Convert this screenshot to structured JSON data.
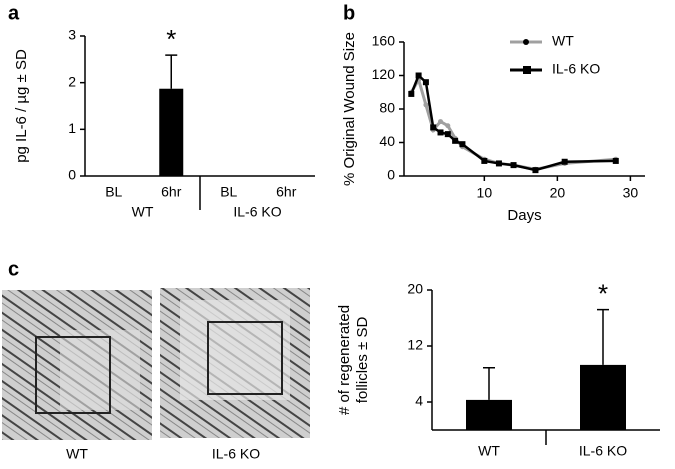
{
  "chart_data": [
    {
      "type": "bar",
      "panel": "a",
      "y_label": "pg IL-6 / µg ± SD",
      "categories": [
        "BL",
        "6hr",
        "BL",
        "6hr"
      ],
      "groups": [
        "WT",
        "IL-6 KO"
      ],
      "values": [
        0,
        1.87,
        0,
        0
      ],
      "errors": [
        null,
        0.72,
        null,
        null
      ],
      "color": "#000000",
      "ylim": [
        0,
        3
      ],
      "yticks": [
        0,
        1,
        2,
        3
      ],
      "annotations": [
        {
          "index": 1,
          "text": "*"
        }
      ]
    },
    {
      "type": "line",
      "panel": "b",
      "x_label": "Days",
      "y_label": "% Original Wound Size",
      "xlim": [
        -1,
        32
      ],
      "xticks": [
        10,
        20,
        30
      ],
      "ylim": [
        0,
        160
      ],
      "yticks": [
        0,
        40,
        80,
        120,
        160
      ],
      "legend": "top-right",
      "series": [
        {
          "name": "WT",
          "color": "#a0a0a0",
          "marker": "dot",
          "x": [
            0,
            1,
            2,
            3,
            4,
            5,
            6,
            7,
            10,
            12,
            14,
            17,
            21,
            28
          ],
          "values": [
            100,
            115,
            85,
            55,
            65,
            60,
            45,
            35,
            20,
            15,
            13,
            8,
            15,
            20
          ]
        },
        {
          "name": "IL-6 KO",
          "color": "#000000",
          "marker": "square",
          "x": [
            0,
            1,
            2,
            3,
            4,
            5,
            6,
            7,
            10,
            12,
            14,
            17,
            21,
            28
          ],
          "values": [
            98,
            120,
            112,
            58,
            52,
            50,
            42,
            38,
            18,
            15,
            13,
            7,
            17,
            18
          ]
        }
      ]
    },
    {
      "type": "bar",
      "panel": "c",
      "y_label": [
        "# of regenerated",
        "follicles ± SD"
      ],
      "categories": [
        "WT",
        "IL-6 KO"
      ],
      "values": [
        4.3,
        9.3
      ],
      "errors": [
        4.6,
        7.9
      ],
      "color": "#000000",
      "ylim": [
        0,
        20
      ],
      "yticks": [
        4,
        12,
        20
      ],
      "annotations": [
        {
          "index": 1,
          "text": "*"
        }
      ]
    }
  ],
  "images": [
    "WT",
    "IL-6 KO"
  ]
}
